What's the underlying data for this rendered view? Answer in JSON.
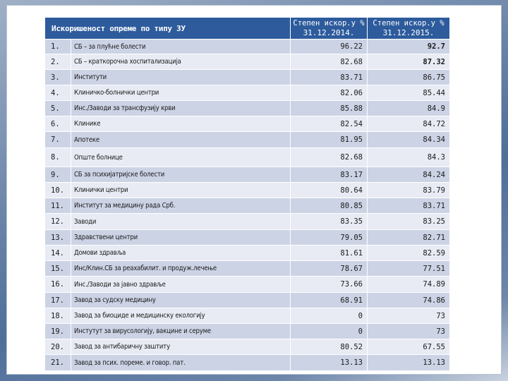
{
  "header": {
    "title": "Искоришеност опреме по типу ЗУ",
    "col1_line1": "Степен искор.у %",
    "col1_line2": "31.12.2014.",
    "col2_line1": "Степен искор.у %",
    "col2_line2": "31.12.2015."
  },
  "rows": [
    {
      "num": "1.",
      "name": "СБ – за плућне болести",
      "v2014": "96.22",
      "v2015": "92.7"
    },
    {
      "num": "2.",
      "name": "СБ – краткорочна хоспитализација",
      "v2014": "82.68",
      "v2015": "87.32"
    },
    {
      "num": "3.",
      "name": "Институти",
      "v2014": "83.71",
      "v2015": "86.75"
    },
    {
      "num": "4.",
      "name": "Клиничко-болнички центри",
      "v2014": "82.06",
      "v2015": "85.44"
    },
    {
      "num": "5.",
      "name": "Инс./Заводи за трансфузију крви",
      "v2014": "85.88",
      "v2015": "84.9"
    },
    {
      "num": "6.",
      "name": "Клинике",
      "v2014": "82.54",
      "v2015": "84.72"
    },
    {
      "num": "7.",
      "name": "Апотеке",
      "v2014": "81.95",
      "v2015": "84.34"
    },
    {
      "num": "8.",
      "name": "Опште болнице",
      "v2014": "82.68",
      "v2015": "84.3"
    },
    {
      "num": "9.",
      "name": "СБ за психијатријске болести",
      "v2014": "83.17",
      "v2015": "84.24"
    },
    {
      "num": "10.",
      "name": "Клинички центри",
      "v2014": "80.64",
      "v2015": "83.79"
    },
    {
      "num": "11.",
      "name": "Институт за медицину рада Срб.",
      "v2014": "80.85",
      "v2015": "83.71"
    },
    {
      "num": "12.",
      "name": "Заводи",
      "v2014": "83.35",
      "v2015": "83.25"
    },
    {
      "num": "13.",
      "name": "Здравствени центри",
      "v2014": "79.05",
      "v2015": "82.71"
    },
    {
      "num": "14.",
      "name": "Домови здравља",
      "v2014": "81.61",
      "v2015": "82.59"
    },
    {
      "num": "15.",
      "name": "Инс/Клин.СБ за реахабилит. и продуж.лечење",
      "v2014": "78.67",
      "v2015": "77.51"
    },
    {
      "num": "16.",
      "name": "Инс./Заводи за јавно здравље",
      "v2014": "73.66",
      "v2015": "74.89"
    },
    {
      "num": "17.",
      "name": "Завод за судску медицину",
      "v2014": "68.91",
      "v2015": "74.86"
    },
    {
      "num": "18.",
      "name": "Завод за биоциде и медицинску екологију",
      "v2014": "0",
      "v2015": "73"
    },
    {
      "num": "19.",
      "name": "Инстутут за вирусологију, вакцине и серуме",
      "v2014": "0",
      "v2015": "73"
    },
    {
      "num": "20.",
      "name": "Завод за антибаричну заштиту",
      "v2014": "80.52",
      "v2015": "67.55"
    },
    {
      "num": "21.",
      "name": "Завод за псих. пореме. и говор. пат.",
      "v2014": "13.13",
      "v2015": "13.13"
    }
  ],
  "bold_rows_2015": [
    "92.7",
    "87.32"
  ]
}
